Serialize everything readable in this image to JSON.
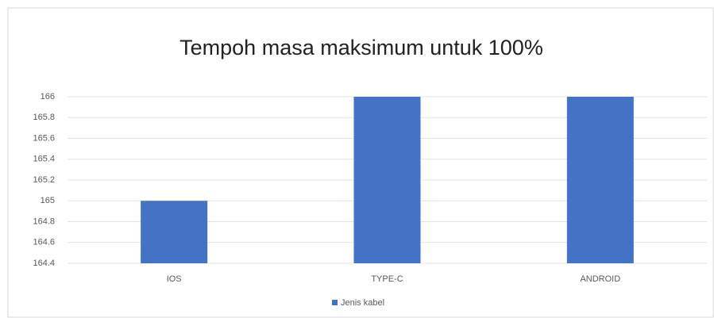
{
  "chart_data": {
    "type": "bar",
    "title": "Tempoh masa maksimum untuk 100%",
    "categories": [
      "IOS",
      "TYPE-C",
      "ANDROID"
    ],
    "series": [
      {
        "name": "Jenis kabel",
        "color": "#4472c4",
        "values": [
          165,
          166,
          166
        ]
      }
    ],
    "ylim": [
      164.4,
      166
    ],
    "yticks": [
      164.4,
      164.6,
      164.8,
      165,
      165.2,
      165.4,
      165.6,
      165.8,
      166
    ],
    "grid": true,
    "legend": "bottom"
  }
}
